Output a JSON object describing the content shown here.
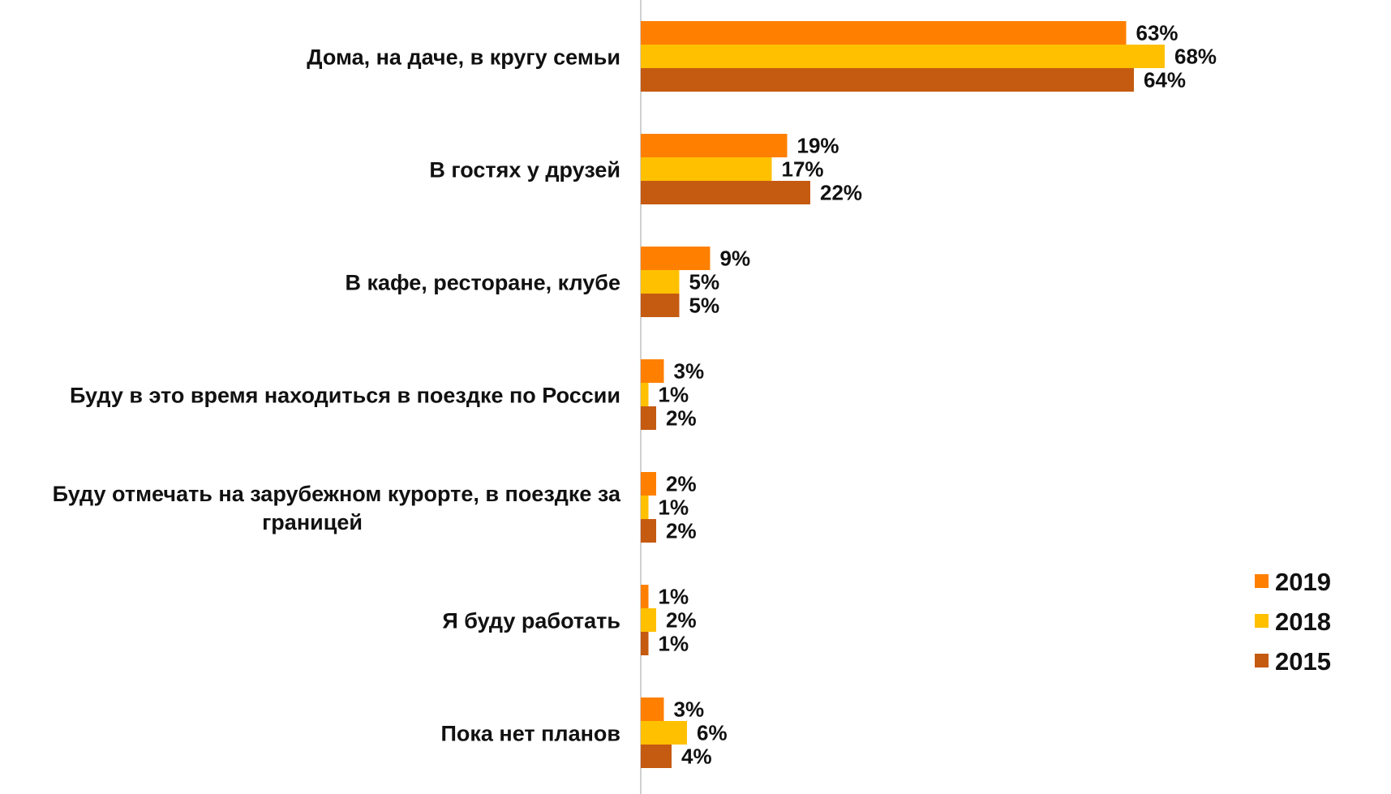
{
  "chart_data": {
    "type": "bar",
    "orientation": "horizontal",
    "categories": [
      "Дома, на даче, в кругу семьи",
      "В гостях у друзей",
      "В кафе, ресторане, клубе",
      "Буду в это время находиться в поездке по России",
      "Буду отмечать на зарубежном курорте, в поездке за границей",
      "Я буду работать",
      "Пока нет планов"
    ],
    "category_lines": [
      [
        "Дома, на даче, в кругу семьи"
      ],
      [
        "В гостях у друзей"
      ],
      [
        "В кафе, ресторане, клубе"
      ],
      [
        "Буду в это время находиться в поездке по России"
      ],
      [
        "Буду отмечать на зарубежном курорте, в поездке за",
        "границей"
      ],
      [
        "Я буду работать"
      ],
      [
        "Пока нет планов"
      ]
    ],
    "series": [
      {
        "name": "2019",
        "color": "#FF8000",
        "values": [
          63,
          19,
          9,
          3,
          2,
          1,
          3
        ]
      },
      {
        "name": "2018",
        "color": "#FFC000",
        "values": [
          68,
          17,
          5,
          1,
          1,
          2,
          6
        ]
      },
      {
        "name": "2015",
        "color": "#C55A11",
        "values": [
          64,
          22,
          5,
          2,
          2,
          1,
          4
        ]
      }
    ],
    "value_suffix": "%",
    "legend_position": "right",
    "grid": false,
    "xlim": [
      0,
      70
    ]
  }
}
